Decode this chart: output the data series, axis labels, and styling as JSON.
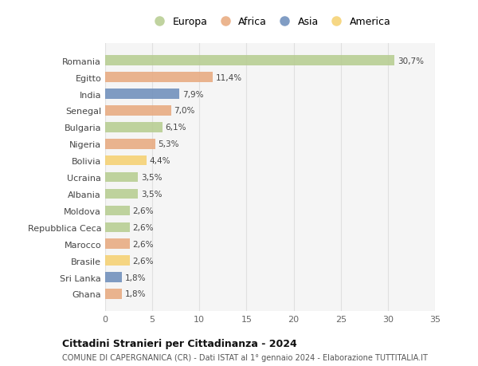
{
  "categories": [
    "Romania",
    "Egitto",
    "India",
    "Senegal",
    "Bulgaria",
    "Nigeria",
    "Bolivia",
    "Ucraina",
    "Albania",
    "Moldova",
    "Repubblica Ceca",
    "Marocco",
    "Brasile",
    "Sri Lanka",
    "Ghana"
  ],
  "values": [
    30.7,
    11.4,
    7.9,
    7.0,
    6.1,
    5.3,
    4.4,
    3.5,
    3.5,
    2.6,
    2.6,
    2.6,
    2.6,
    1.8,
    1.8
  ],
  "labels": [
    "30,7%",
    "11,4%",
    "7,9%",
    "7,0%",
    "6,1%",
    "5,3%",
    "4,4%",
    "3,5%",
    "3,5%",
    "2,6%",
    "2,6%",
    "2,6%",
    "2,6%",
    "1,8%",
    "1,8%"
  ],
  "continents": [
    "Europa",
    "Africa",
    "Asia",
    "Africa",
    "Europa",
    "Africa",
    "America",
    "Europa",
    "Europa",
    "Europa",
    "Europa",
    "Africa",
    "America",
    "Asia",
    "Africa"
  ],
  "colors": {
    "Europa": "#b5cc8e",
    "Africa": "#e8a87c",
    "Asia": "#6b8cba",
    "America": "#f5d06e"
  },
  "legend_order": [
    "Europa",
    "Africa",
    "Asia",
    "America"
  ],
  "title_main": "Cittadini Stranieri per Cittadinanza - 2024",
  "title_sub": "COMUNE DI CAPERGNANICA (CR) - Dati ISTAT al 1° gennaio 2024 - Elaborazione TUTTITALIA.IT",
  "xlim": [
    0,
    35
  ],
  "xticks": [
    0,
    5,
    10,
    15,
    20,
    25,
    30,
    35
  ],
  "bg_color": "#ffffff",
  "plot_bg_color": "#f5f5f5",
  "grid_color": "#e0e0e0"
}
